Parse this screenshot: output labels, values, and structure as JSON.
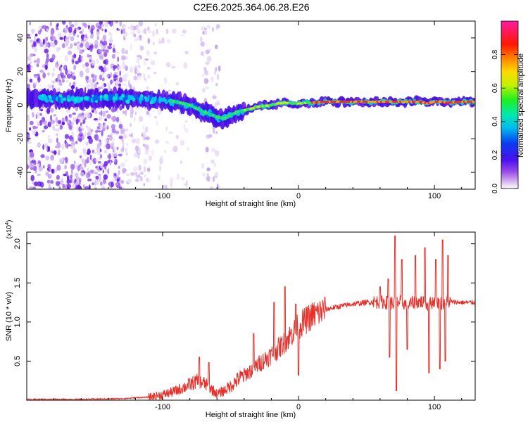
{
  "title": "C2E6.2025.364.06.28.E26",
  "chart_data": [
    {
      "type": "heatmap",
      "name": "spectrogram",
      "xlabel": "Height of straight line (km)",
      "ylabel": "Frequency (Hz)",
      "xlim": [
        -200,
        130
      ],
      "ylim": [
        -50,
        50
      ],
      "xticks": [
        -100,
        0,
        100
      ],
      "xtick_labels": [
        "-100",
        "0",
        "100"
      ],
      "yticks": [
        -40,
        -20,
        0,
        20,
        40
      ],
      "ytick_labels": [
        "-40",
        "-20",
        "0",
        "20",
        "40"
      ],
      "ridge": {
        "x": [
          -200,
          -180,
          -160,
          -140,
          -120,
          -100,
          -90,
          -80,
          -70,
          -60,
          -55,
          -50,
          -45,
          -40,
          -35,
          -30,
          -25,
          -20,
          -15,
          -10,
          -5,
          0,
          10,
          20,
          40,
          60,
          80,
          90,
          95,
          100,
          105,
          110,
          120,
          130
        ],
        "freq": [
          4,
          4,
          3.5,
          4,
          4,
          3,
          2,
          0,
          -4,
          -7,
          -8,
          -6,
          -4,
          -3,
          -2,
          -1,
          -0.5,
          0,
          1,
          1.5,
          1,
          1,
          1.5,
          2,
          2,
          2,
          2,
          2,
          1,
          2,
          2,
          1.5,
          2,
          2
        ]
      },
      "colorbar": {
        "label": "Normalized spectral amplitude",
        "range": [
          0,
          1
        ],
        "ticks": [
          0.0,
          0.2,
          0.4,
          0.6,
          0.8
        ],
        "tick_labels": [
          "0.0",
          "0.2",
          "0.4",
          "0.6",
          "0.8"
        ]
      }
    },
    {
      "type": "line",
      "name": "snr",
      "xlabel": "Height of straight line (km)",
      "ylabel": "SNR (10 * v/v)",
      "scale_label": "(x10",
      "scale_exponent": "4",
      "scale_close": ")",
      "xlim": [
        -200,
        130
      ],
      "ylim": [
        0,
        2.15
      ],
      "xticks": [
        -100,
        0,
        100
      ],
      "xtick_labels": [
        "-100",
        "0",
        "100"
      ],
      "yticks": [
        0.5,
        1.0,
        1.5,
        2.0
      ],
      "ytick_labels": [
        "0.5",
        "1.0",
        "1.5",
        "2.0"
      ],
      "color": "#e8302a",
      "envelope": {
        "x": [
          -200,
          -160,
          -130,
          -110,
          -100,
          -90,
          -80,
          -75,
          -70,
          -65,
          -60,
          -55,
          -50,
          -45,
          -40,
          -35,
          -30,
          -25,
          -20,
          -15,
          -10,
          -5,
          0,
          10,
          20,
          30,
          40,
          50,
          60,
          65,
          70,
          75,
          80,
          85,
          90,
          95,
          100,
          105,
          110,
          120,
          130
        ],
        "y": [
          0.01,
          0.01,
          0.02,
          0.04,
          0.07,
          0.12,
          0.2,
          0.24,
          0.22,
          0.16,
          0.08,
          0.12,
          0.18,
          0.26,
          0.32,
          0.38,
          0.45,
          0.52,
          0.58,
          0.66,
          0.74,
          0.85,
          0.95,
          1.08,
          1.16,
          1.2,
          1.23,
          1.25,
          1.26,
          1.25,
          1.24,
          1.26,
          1.22,
          1.25,
          1.26,
          1.22,
          1.27,
          1.24,
          1.26,
          1.25,
          1.25
        ]
      },
      "peaks": [
        {
          "x": -73,
          "y": 0.55
        },
        {
          "x": -66,
          "y": 0.48
        },
        {
          "x": -33,
          "y": 0.85
        },
        {
          "x": -18,
          "y": 1.25
        },
        {
          "x": -10,
          "y": 1.45
        },
        {
          "x": -2,
          "y": 1.23
        },
        {
          "x": 60,
          "y": 1.45
        },
        {
          "x": 66,
          "y": 1.55
        },
        {
          "x": 71,
          "y": 2.1
        },
        {
          "x": 76,
          "y": 1.8
        },
        {
          "x": 86,
          "y": 1.85
        },
        {
          "x": 93,
          "y": 1.95
        },
        {
          "x": 101,
          "y": 1.8
        },
        {
          "x": 106,
          "y": 2.05
        },
        {
          "x": 110,
          "y": 1.85
        }
      ],
      "dips": [
        {
          "x": 0,
          "y": 0.32
        },
        {
          "x": 67,
          "y": 0.55
        },
        {
          "x": 72,
          "y": 0.12
        },
        {
          "x": 80,
          "y": 0.65
        },
        {
          "x": 96,
          "y": 0.35
        },
        {
          "x": 104,
          "y": 0.4
        },
        {
          "x": 108,
          "y": 0.5
        }
      ]
    }
  ]
}
